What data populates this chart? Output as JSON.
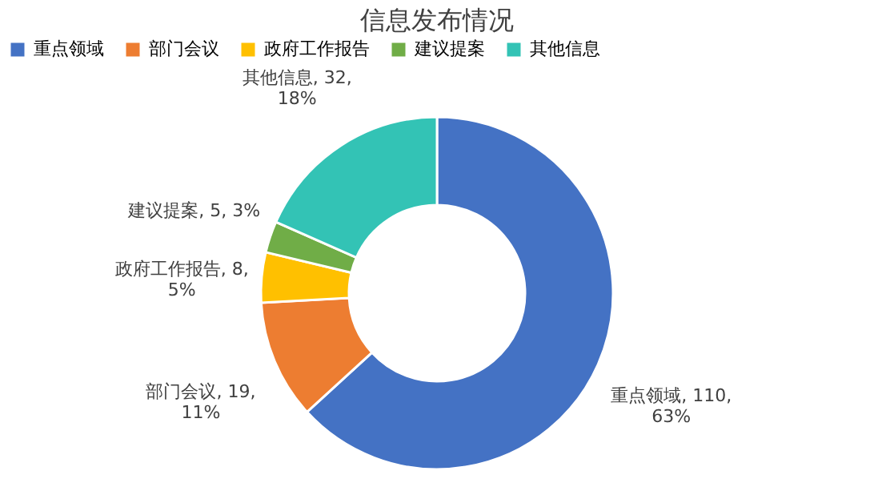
{
  "chart_data": {
    "type": "donut",
    "title": "信息发布情况",
    "categories": [
      "重点领域",
      "部门会议",
      "政府工作报告",
      "建议提案",
      "其他信息"
    ],
    "values": [
      110,
      19,
      8,
      5,
      32
    ],
    "colors": [
      "#4472c4",
      "#ed7d31",
      "#ffc000",
      "#70ad47",
      "#33c3b5"
    ],
    "value_labels": [
      "重点领域, 110,\n63%",
      "部门会议, 19,\n11%",
      "政府工作报告, 8,\n5%",
      "建议提案, 5, 3%",
      "其他信息, 32,\n18%"
    ],
    "legend": "top"
  }
}
